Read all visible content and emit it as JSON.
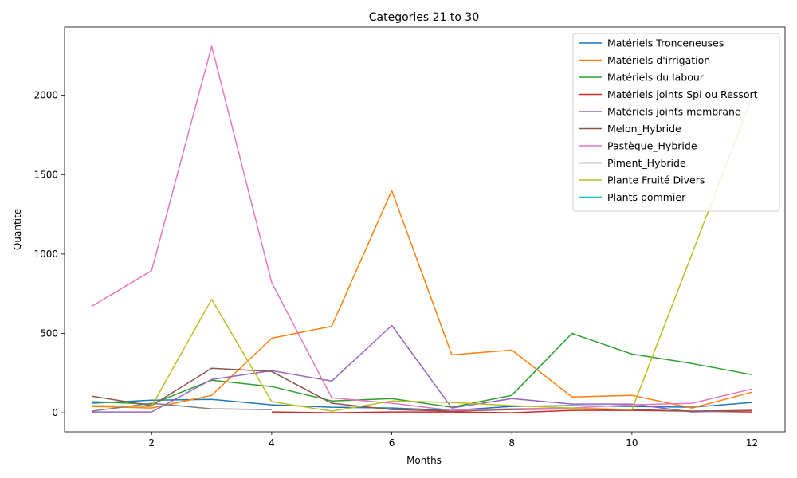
{
  "chart_data": {
    "type": "line",
    "title": "Categories 21 to 30",
    "xlabel": "Months",
    "ylabel": "Quantite",
    "xlim": [
      0.55,
      12.55
    ],
    "ylim": [
      -120,
      2430
    ],
    "xticks": [
      2,
      4,
      6,
      8,
      10,
      12
    ],
    "yticks": [
      0,
      500,
      1000,
      1500,
      2000
    ],
    "grid": false,
    "legend_position": "top-right",
    "series": [
      {
        "name": "Matériels Tronceneuses",
        "color": "#1f77b4",
        "x": [
          1,
          2,
          3,
          4,
          5,
          6,
          7,
          8,
          9,
          10,
          11,
          12
        ],
        "y": [
          60,
          80,
          85,
          50,
          35,
          30,
          15,
          40,
          45,
          40,
          35,
          65
        ]
      },
      {
        "name": "Matériels d'irrigation",
        "color": "#ff7f0e",
        "x": [
          1,
          2,
          3,
          4,
          5,
          6,
          7,
          8,
          9,
          10,
          11,
          12
        ],
        "y": [
          40,
          30,
          110,
          470,
          545,
          1400,
          365,
          395,
          100,
          110,
          30,
          130
        ]
      },
      {
        "name": "Matériels du labour",
        "color": "#2ca02c",
        "x": [
          1,
          2,
          3,
          4,
          5,
          6,
          7,
          8,
          9,
          10,
          11,
          12
        ],
        "y": [
          70,
          55,
          205,
          165,
          75,
          90,
          35,
          110,
          500,
          370,
          310,
          240
        ]
      },
      {
        "name": "Matériels joints Spi ou Ressort",
        "color": "#d62728",
        "x": [
          4,
          5,
          6,
          7,
          8,
          9,
          10,
          11,
          12
        ],
        "y": [
          5,
          0,
          5,
          5,
          0,
          15,
          15,
          10,
          5
        ]
      },
      {
        "name": "Matériels joints membrane",
        "color": "#9467bd",
        "x": [
          1,
          2,
          3,
          4,
          5,
          6,
          7,
          8,
          9,
          10,
          11,
          12
        ],
        "y": [
          5,
          5,
          210,
          265,
          200,
          550,
          30,
          90,
          55,
          55,
          5,
          15
        ]
      },
      {
        "name": "Melon_Hybride",
        "color": "#8c564b",
        "x": [
          1,
          2,
          3,
          4,
          5,
          6,
          7,
          8,
          9,
          10,
          11,
          12
        ],
        "y": [
          105,
          45,
          280,
          260,
          60,
          20,
          10,
          20,
          25,
          20,
          10,
          15
        ]
      },
      {
        "name": "Pastèque_Hybride",
        "color": "#e377c2",
        "x": [
          1,
          2,
          3,
          4,
          5,
          6,
          7,
          8,
          9,
          10,
          11,
          12
        ],
        "y": [
          670,
          895,
          2310,
          820,
          95,
          60,
          15,
          25,
          30,
          50,
          60,
          150
        ]
      },
      {
        "name": "Piment_Hybride",
        "color": "#7f7f7f",
        "x": [
          1,
          2,
          3,
          4
        ],
        "y": [
          10,
          60,
          25,
          20
        ]
      },
      {
        "name": "Plante Fruité Divers",
        "color": "#bcbd22",
        "x": [
          1,
          2,
          3,
          4,
          5,
          6,
          7,
          8,
          9,
          10,
          11,
          12
        ],
        "y": [
          45,
          40,
          715,
          70,
          10,
          75,
          65,
          45,
          30,
          20,
          1000,
          1990
        ]
      },
      {
        "name": "Plants pommier",
        "color": "#17becf",
        "x": [],
        "y": []
      }
    ]
  }
}
